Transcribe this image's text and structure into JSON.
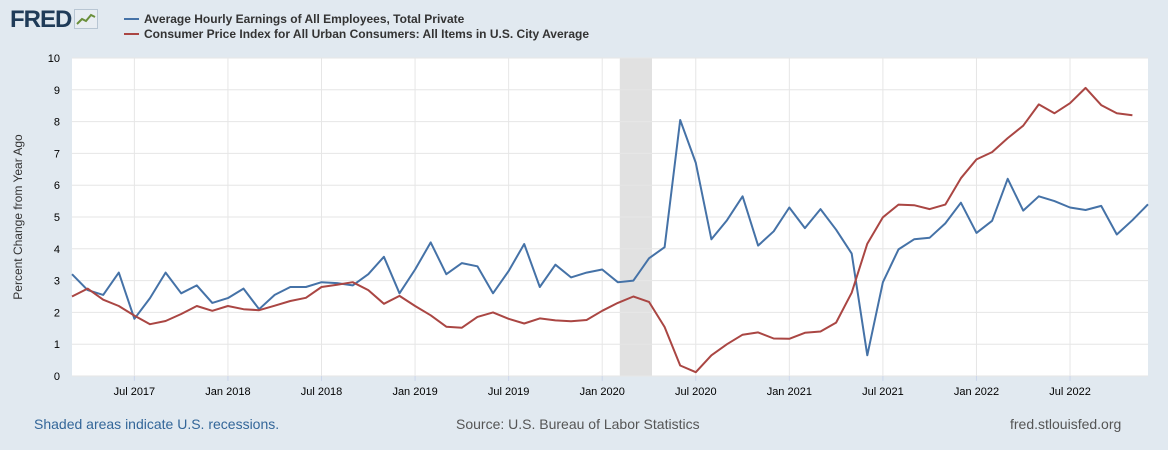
{
  "logo": {
    "text": "FRED"
  },
  "footer": {
    "recession_note": "Shaded areas indicate U.S. recessions.",
    "source": "Source: U.S. Bureau of Labor Statistics",
    "site": "fred.stlouisfed.org"
  },
  "chart_data": {
    "type": "line",
    "title": "",
    "xlabel": "",
    "ylabel": "Percent Change from Year Ago",
    "ylim": [
      0,
      10
    ],
    "yticks": [
      0,
      1,
      2,
      3,
      4,
      5,
      6,
      7,
      8,
      9,
      10
    ],
    "x_start": "2017-03",
    "x_end": "2022-10",
    "xticks": [
      "Jul 2017",
      "Jan 2018",
      "Jul 2018",
      "Jan 2019",
      "Jul 2019",
      "Jan 2020",
      "Jul 2020",
      "Jan 2021",
      "Jul 2021",
      "Jan 2022",
      "Jul 2022"
    ],
    "xtick_month_index": [
      4,
      10,
      16,
      22,
      28,
      34,
      40,
      46,
      52,
      58,
      64
    ],
    "recession": {
      "start_index": 35,
      "end_index": 37
    },
    "colors": {
      "series1": "#4572a7",
      "series2": "#aa4643",
      "recession": "#e1e1e1",
      "grid": "#e6e6e6"
    },
    "series": [
      {
        "name": "Average Hourly Earnings of All Employees, Total Private",
        "color": "#4572a7",
        "values": [
          3.2,
          2.7,
          2.55,
          3.25,
          1.8,
          2.45,
          3.25,
          2.6,
          2.85,
          2.3,
          2.45,
          2.75,
          2.1,
          2.55,
          2.8,
          2.8,
          2.95,
          2.92,
          2.85,
          3.2,
          3.75,
          2.6,
          3.35,
          4.2,
          3.2,
          3.55,
          3.45,
          2.6,
          3.3,
          4.15,
          2.8,
          3.5,
          3.1,
          3.25,
          3.35,
          2.95,
          3.0,
          3.7,
          4.05,
          8.05,
          6.7,
          4.3,
          4.9,
          5.65,
          4.1,
          4.55,
          5.3,
          4.65,
          5.25,
          4.6,
          3.85,
          0.65,
          2.95,
          3.98,
          4.3,
          4.35,
          4.8,
          5.45,
          4.5,
          4.88,
          6.2,
          5.2,
          5.65,
          5.5,
          5.3,
          5.22,
          5.35,
          4.45,
          4.9,
          5.4
        ]
      },
      {
        "name": "Consumer Price Index for All Urban Consumers: All Items in U.S. City Average",
        "color": "#aa4643",
        "values": [
          2.5,
          2.75,
          2.4,
          2.2,
          1.9,
          1.63,
          1.73,
          1.95,
          2.2,
          2.05,
          2.2,
          2.1,
          2.07,
          2.21,
          2.36,
          2.46,
          2.8,
          2.87,
          2.95,
          2.7,
          2.27,
          2.52,
          2.2,
          1.91,
          1.55,
          1.52,
          1.86,
          2.0,
          1.8,
          1.65,
          1.81,
          1.75,
          1.72,
          1.76,
          2.05,
          2.3,
          2.5,
          2.33,
          1.54,
          0.33,
          0.12,
          0.65,
          1.0,
          1.3,
          1.37,
          1.18,
          1.17,
          1.36,
          1.4,
          1.68,
          2.62,
          4.16,
          4.99,
          5.39,
          5.37,
          5.25,
          5.39,
          6.22,
          6.81,
          7.04,
          7.48,
          7.87,
          8.54,
          8.26,
          8.58,
          9.06,
          8.52,
          8.26,
          8.2
        ]
      }
    ]
  }
}
